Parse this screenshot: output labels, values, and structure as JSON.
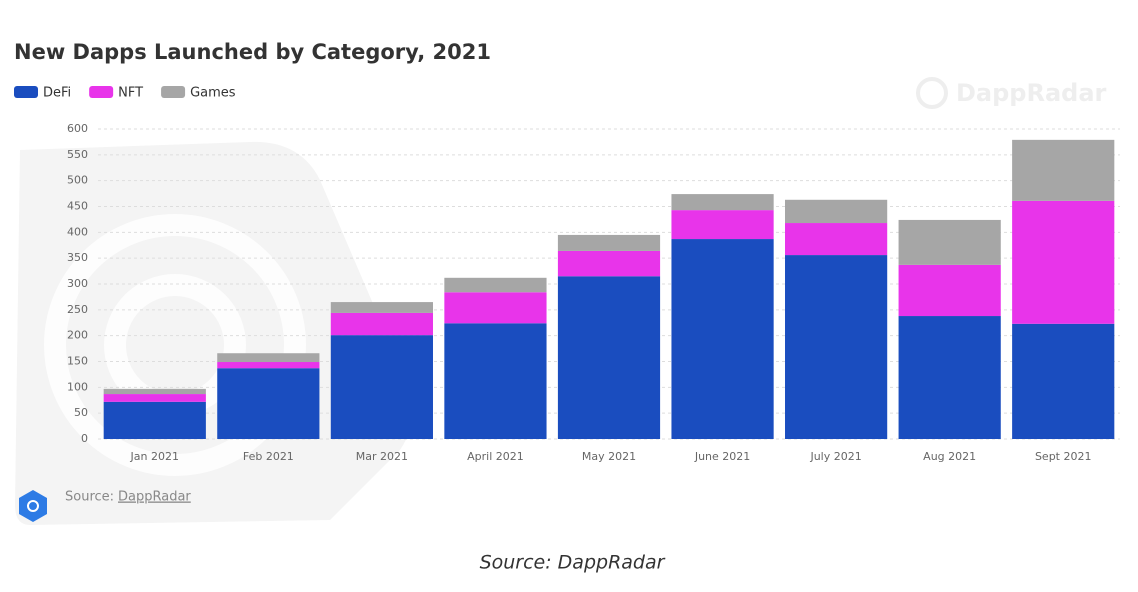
{
  "chart_data": {
    "type": "stacked_bar",
    "title": "New Dapps Launched by Category, 2021",
    "categories": [
      "Jan 2021",
      "Feb 2021",
      "Mar 2021",
      "April 2021",
      "May 2021",
      "June 2021",
      "July 2021",
      "Aug 2021",
      "Sept 2021"
    ],
    "series": [
      {
        "name": "DeFi",
        "color": "#1a4dbf",
        "values": [
          72,
          137,
          201,
          224,
          315,
          387,
          356,
          238,
          223
        ]
      },
      {
        "name": "NFT",
        "color": "#e834ea",
        "values": [
          15,
          12,
          43,
          60,
          49,
          56,
          62,
          99,
          238
        ]
      },
      {
        "name": "Games",
        "color": "#a6a6a6",
        "values": [
          10,
          17,
          21,
          28,
          31,
          31,
          45,
          87,
          118
        ]
      }
    ],
    "ylim": [
      0,
      600
    ],
    "yticks": [
      0,
      50,
      100,
      150,
      200,
      250,
      300,
      350,
      400,
      450,
      500,
      550,
      600
    ],
    "grid": true,
    "watermark": "DappRadar",
    "source_label": "Source:",
    "source_link": "DappRadar",
    "caption": "Source: DappRadar"
  }
}
